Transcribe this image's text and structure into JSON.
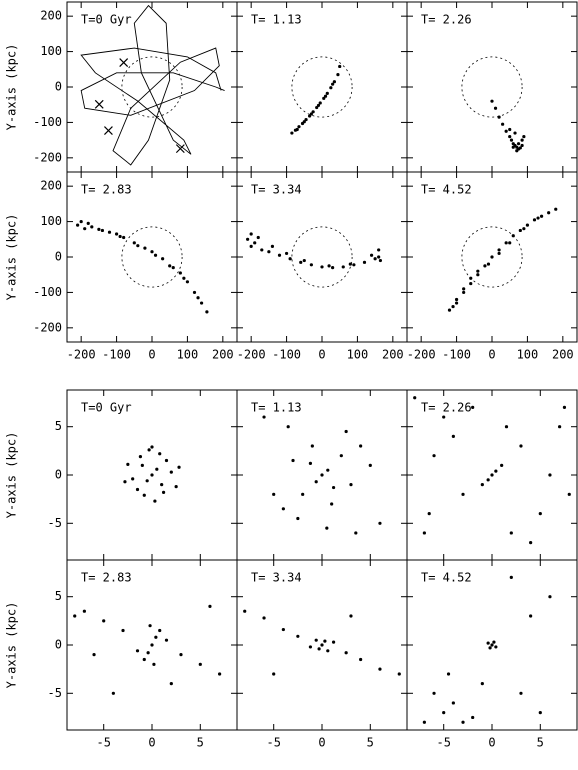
{
  "chart_data": [
    {
      "type": "scatter",
      "annotation": "T=0 Gyr",
      "ylabel": "Y-axis (kpc)",
      "circle_radius": 85,
      "xlim": [
        -240,
        240
      ],
      "ylim": [
        -240,
        240
      ],
      "xticks": [
        -200,
        -100,
        0,
        100,
        200
      ],
      "yticks": [
        -200,
        -100,
        0,
        100,
        200
      ],
      "series": [
        {
          "mode": "line",
          "color": "#000000",
          "x": [
            195,
            180,
            100,
            -50,
            -200,
            -160,
            -40,
            90,
            110,
            60,
            -30,
            -50,
            -10,
            40,
            50,
            -10,
            -60,
            -110,
            -60,
            80,
            180,
            190,
            120,
            -60,
            -190,
            -200,
            -100,
            60,
            180,
            205
          ],
          "y": [
            -10,
            40,
            85,
            110,
            90,
            40,
            -40,
            -150,
            -190,
            -150,
            40,
            180,
            230,
            180,
            20,
            -150,
            -220,
            -180,
            -60,
            70,
            110,
            60,
            -10,
            -80,
            -60,
            -10,
            40,
            40,
            0,
            -10
          ]
        },
        {
          "mode": "markers",
          "marker": "x",
          "color": "#000000",
          "x": [
            -80,
            -149,
            -123,
            80
          ],
          "y": [
            69,
            -49,
            -123,
            -174
          ]
        }
      ]
    },
    {
      "type": "scatter",
      "annotation": "T= 1.13",
      "circle_radius": 85,
      "xlim": [
        -240,
        240
      ],
      "ylim": [
        -240,
        240
      ],
      "xticks": [
        -200,
        -100,
        0,
        100,
        200
      ],
      "yticks": [
        -200,
        -100,
        0,
        100,
        200
      ],
      "series": [
        {
          "mode": "markers",
          "color": "#000000",
          "x": [
            -85,
            -75,
            -65,
            -55,
            -45,
            -35,
            -25,
            -15,
            -5,
            5,
            15,
            25,
            35,
            45,
            50,
            -70,
            -50,
            -30,
            -10,
            10,
            30
          ],
          "y": [
            -130,
            -122,
            -112,
            -103,
            -92,
            -82,
            -70,
            -58,
            -45,
            -32,
            -18,
            -2,
            15,
            35,
            58,
            -120,
            -98,
            -76,
            -52,
            -26,
            8
          ]
        }
      ]
    },
    {
      "type": "scatter",
      "annotation": "T= 2.26",
      "circle_radius": 85,
      "xlim": [
        -240,
        240
      ],
      "ylim": [
        -240,
        240
      ],
      "xticks": [
        -200,
        -100,
        0,
        100,
        200
      ],
      "yticks": [
        -200,
        -100,
        0,
        100,
        200
      ],
      "series": [
        {
          "mode": "markers",
          "color": "#000000",
          "x": [
            0,
            10,
            20,
            30,
            40,
            50,
            55,
            60,
            65,
            70,
            75,
            80,
            85,
            70,
            60,
            75,
            85,
            90,
            50,
            65
          ],
          "y": [
            -40,
            -60,
            -85,
            -105,
            -125,
            -140,
            -150,
            -160,
            -165,
            -170,
            -175,
            -172,
            -165,
            -180,
            -170,
            -160,
            -150,
            -140,
            -120,
            -130
          ]
        }
      ]
    },
    {
      "type": "scatter",
      "annotation": "T= 2.83",
      "ylabel": "Y-axis (kpc)",
      "circle_radius": 85,
      "xlim": [
        -240,
        240
      ],
      "ylim": [
        -240,
        240
      ],
      "xticks": [
        -200,
        -100,
        0,
        100,
        200
      ],
      "yticks": [
        -200,
        -100,
        0,
        100,
        200
      ],
      "series": [
        {
          "mode": "markers",
          "color": "#000000",
          "x": [
            -210,
            -200,
            -190,
            -170,
            -150,
            -120,
            -100,
            -80,
            -50,
            -20,
            0,
            30,
            60,
            80,
            100,
            120,
            140,
            155,
            -180,
            -140,
            -90,
            -40,
            10,
            50,
            90,
            130
          ],
          "y": [
            90,
            100,
            80,
            85,
            78,
            70,
            65,
            55,
            40,
            25,
            15,
            -5,
            -30,
            -45,
            -70,
            -100,
            -130,
            -155,
            95,
            75,
            58,
            32,
            5,
            -25,
            -60,
            -115
          ]
        }
      ]
    },
    {
      "type": "scatter",
      "annotation": "T= 3.34",
      "circle_radius": 85,
      "xlim": [
        -240,
        240
      ],
      "ylim": [
        -240,
        240
      ],
      "xticks": [
        -200,
        -100,
        0,
        100,
        200
      ],
      "yticks": [
        -200,
        -100,
        0,
        100,
        200
      ],
      "series": [
        {
          "mode": "markers",
          "color": "#000000",
          "x": [
            -210,
            -200,
            -190,
            -170,
            -150,
            -120,
            -90,
            -60,
            -30,
            0,
            30,
            60,
            90,
            120,
            150,
            160,
            165,
            -200,
            -180,
            -140,
            -100,
            -50,
            20,
            80,
            140,
            160
          ],
          "y": [
            50,
            30,
            40,
            20,
            15,
            5,
            -5,
            -15,
            -22,
            -28,
            -30,
            -28,
            -22,
            -15,
            -5,
            0,
            -10,
            65,
            55,
            30,
            10,
            -10,
            -25,
            -20,
            5,
            20
          ]
        }
      ]
    },
    {
      "type": "scatter",
      "annotation": "T= 4.52",
      "circle_radius": 85,
      "xlim": [
        -240,
        240
      ],
      "ylim": [
        -240,
        240
      ],
      "xticks": [
        -200,
        -100,
        0,
        100,
        200
      ],
      "yticks": [
        -200,
        -100,
        0,
        100,
        200
      ],
      "series": [
        {
          "mode": "markers",
          "color": "#000000",
          "x": [
            -120,
            -110,
            -100,
            -80,
            -60,
            -40,
            -20,
            0,
            20,
            40,
            60,
            80,
            100,
            120,
            140,
            160,
            180,
            -100,
            -80,
            -60,
            -40,
            -10,
            20,
            50,
            90,
            130
          ],
          "y": [
            -150,
            -140,
            -120,
            -100,
            -75,
            -50,
            -25,
            0,
            20,
            40,
            60,
            75,
            90,
            105,
            115,
            125,
            135,
            -130,
            -90,
            -60,
            -40,
            -20,
            10,
            40,
            80,
            110
          ]
        }
      ]
    },
    {
      "type": "scatter",
      "annotation": "T=0 Gyr",
      "ylabel": "Y-axis (kpc)",
      "xlim": [
        -8.8,
        8.8
      ],
      "ylim": [
        -8.8,
        8.8
      ],
      "xticks": [
        -5,
        0,
        5
      ],
      "yticks": [
        -5,
        0,
        5
      ],
      "series": [
        {
          "mode": "markers",
          "color": "#000000",
          "x": [
            0,
            0.5,
            -0.5,
            1,
            -1,
            1.5,
            -1.5,
            2,
            -2,
            2.5,
            -2.5,
            0.8,
            -0.8,
            1.2,
            -1.2,
            0.3,
            -0.3,
            2.8,
            -2.8,
            0
          ],
          "y": [
            0,
            0.6,
            -0.6,
            -1,
            1,
            1.5,
            -1.5,
            0.3,
            -0.4,
            -1.2,
            1.1,
            2.2,
            -2.1,
            -1.8,
            1.9,
            -2.7,
            2.6,
            0.8,
            -0.7,
            2.9
          ]
        }
      ]
    },
    {
      "type": "scatter",
      "annotation": "T= 1.13",
      "xlim": [
        -8.8,
        8.8
      ],
      "ylim": [
        -8.8,
        8.8
      ],
      "xticks": [
        -5,
        0,
        5
      ],
      "yticks": [
        -5,
        0,
        5
      ],
      "series": [
        {
          "mode": "markers",
          "color": "#000000",
          "x": [
            0,
            0.6,
            -0.6,
            1.2,
            -1.2,
            2,
            -2,
            3,
            -3,
            4,
            -4,
            1,
            -1,
            2.5,
            -2.5,
            5,
            -5,
            6,
            -6,
            3.5,
            -3.5,
            0.5
          ],
          "y": [
            0,
            0.5,
            -0.7,
            -1.3,
            1.2,
            2,
            -2,
            -1,
            1.5,
            3,
            -3.5,
            -3,
            3,
            4.5,
            -4.5,
            1,
            -2,
            -5,
            6,
            -6,
            5,
            -5.5
          ]
        }
      ]
    },
    {
      "type": "scatter",
      "annotation": "T= 2.26",
      "xlim": [
        -8.8,
        8.8
      ],
      "ylim": [
        -8.8,
        8.8
      ],
      "xticks": [
        -5,
        0,
        5
      ],
      "yticks": [
        -5,
        0,
        5
      ],
      "series": [
        {
          "mode": "markers",
          "color": "#000000",
          "x": [
            0,
            0.4,
            -0.4,
            1,
            -1,
            3,
            -3,
            5,
            -5,
            7,
            -7,
            2,
            -2,
            6,
            -6,
            4,
            -4,
            8,
            -8,
            1.5,
            -6.5,
            7.5
          ],
          "y": [
            0,
            0.4,
            -0.5,
            1,
            -1,
            3,
            -2,
            -4,
            6,
            5,
            -6,
            -6,
            7,
            0,
            2,
            -7,
            4,
            -2,
            8,
            5,
            -4,
            7
          ]
        }
      ]
    },
    {
      "type": "scatter",
      "annotation": "T= 2.83",
      "ylabel": "Y-axis (kpc)",
      "xlim": [
        -8.8,
        8.8
      ],
      "ylim": [
        -8.8,
        8.8
      ],
      "xticks": [
        -5,
        0,
        5
      ],
      "yticks": [
        -5,
        0,
        5
      ],
      "series": [
        {
          "mode": "markers",
          "color": "#000000",
          "x": [
            0,
            0.4,
            -0.4,
            0.8,
            -0.8,
            0.2,
            -0.2,
            1.5,
            -1.5,
            3,
            -3,
            5,
            -5,
            7,
            -7,
            -8,
            2,
            -4,
            6,
            -6
          ],
          "y": [
            0,
            0.8,
            -0.8,
            1.5,
            -1.5,
            -2,
            2,
            0.5,
            -0.6,
            -1,
            1.5,
            -2,
            2.5,
            -3,
            3.5,
            3,
            -4,
            -5,
            4,
            -1
          ]
        }
      ]
    },
    {
      "type": "scatter",
      "annotation": "T= 3.34",
      "xlim": [
        -8.8,
        8.8
      ],
      "ylim": [
        -8.8,
        8.8
      ],
      "xticks": [
        -5,
        0,
        5
      ],
      "yticks": [
        -5,
        0,
        5
      ],
      "series": [
        {
          "mode": "markers",
          "color": "#000000",
          "x": [
            0,
            0.3,
            -0.3,
            0.6,
            -0.6,
            1.2,
            -1.2,
            2.5,
            -2.5,
            4,
            -4,
            6,
            -6,
            8,
            -8,
            3,
            -5
          ],
          "y": [
            0,
            0.4,
            -0.4,
            -0.6,
            0.5,
            0.3,
            -0.2,
            -0.8,
            0.9,
            -1.5,
            1.6,
            -2.5,
            2.8,
            -3,
            3.5,
            3,
            -3
          ]
        }
      ]
    },
    {
      "type": "scatter",
      "annotation": "T= 4.52",
      "xlim": [
        -8.8,
        8.8
      ],
      "ylim": [
        -8.8,
        8.8
      ],
      "xticks": [
        -5,
        0,
        5
      ],
      "yticks": [
        -5,
        0,
        5
      ],
      "series": [
        {
          "mode": "markers",
          "color": "#000000",
          "x": [
            0,
            0.2,
            -0.2,
            0.4,
            -0.4,
            -4,
            -5,
            -3,
            -6,
            -2,
            -4.5,
            3,
            5,
            4,
            6,
            -7,
            2,
            -1
          ],
          "y": [
            0,
            0.3,
            -0.3,
            -0.2,
            0.2,
            -6,
            -7,
            -8,
            -5,
            -7.5,
            -3,
            -5,
            -7,
            3,
            5,
            -8,
            7,
            -4
          ]
        }
      ]
    }
  ]
}
